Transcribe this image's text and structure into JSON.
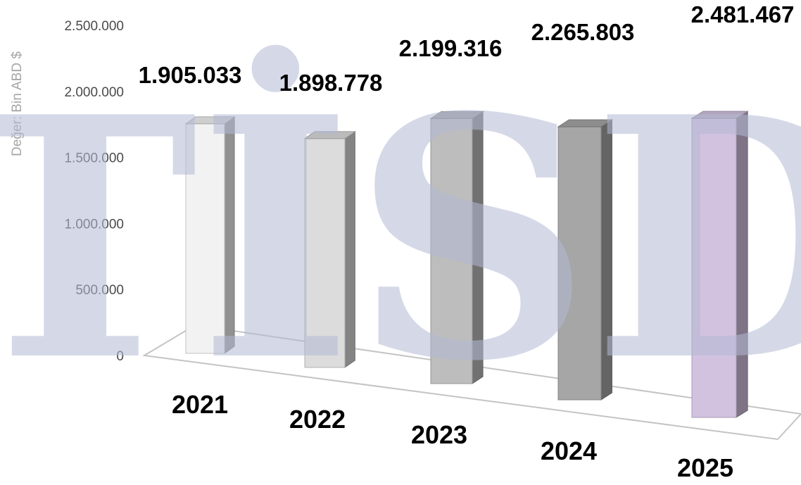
{
  "chart_data": {
    "type": "bar",
    "title": "",
    "xlabel": "",
    "ylabel": "Değer: Bin ABD $",
    "ylim": [
      0,
      2500000
    ],
    "y_ticks": [
      "0",
      "500.000",
      "1.000.000",
      "1.500.000",
      "2.000.000",
      "2.500.000"
    ],
    "categories": [
      "2021",
      "2022",
      "2023",
      "2024",
      "2025"
    ],
    "values": [
      1905033,
      1898778,
      2199316,
      2265803,
      2481467
    ],
    "data_labels": [
      "1.905.033",
      "1.898.778",
      "2.199.316",
      "2.265.803",
      "2.481.467"
    ],
    "bar_colors": [
      "#f2f2f2",
      "#dcdcdc",
      "#bdbdbd",
      "#a6a6a6",
      "#d2c2e0"
    ],
    "legend": "none",
    "grid": false,
    "style": "3d-column"
  },
  "watermark": {
    "text": "TİSD"
  }
}
